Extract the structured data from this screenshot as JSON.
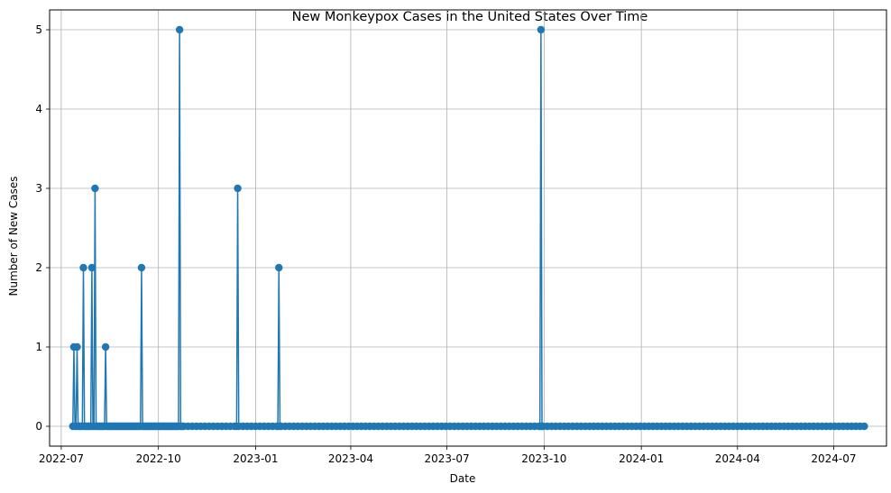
{
  "chart_data": {
    "type": "line",
    "title": "New Monkeypox Cases in the United States Over Time",
    "xlabel": "Date",
    "ylabel": "Number of New Cases",
    "grid": true,
    "marker": "circle",
    "line_color": "#1f77b4",
    "x_range": [
      "2022-06-20",
      "2024-08-20"
    ],
    "ylim": [
      -0.25,
      5.25
    ],
    "x_tick_labels": [
      "2022-07",
      "2022-10",
      "2023-01",
      "2023-04",
      "2023-07",
      "2023-10",
      "2024-01",
      "2024-04",
      "2024-07"
    ],
    "y_tick_labels": [
      "0",
      "1",
      "2",
      "3",
      "4",
      "5"
    ],
    "series_start": "2022-07-13",
    "series_end": "2024-07-31",
    "series_interval": "daily-to-weekly",
    "default_value": 0,
    "nonzero_points": [
      {
        "x": "2022-07-13",
        "y": 1
      },
      {
        "x": "2022-07-16",
        "y": 1
      },
      {
        "x": "2022-07-22",
        "y": 2
      },
      {
        "x": "2022-07-30",
        "y": 2
      },
      {
        "x": "2022-08-02",
        "y": 3
      },
      {
        "x": "2022-08-12",
        "y": 1
      },
      {
        "x": "2022-09-15",
        "y": 2
      },
      {
        "x": "2022-10-21",
        "y": 5
      },
      {
        "x": "2022-12-15",
        "y": 3
      },
      {
        "x": "2023-01-23",
        "y": 2
      },
      {
        "x": "2023-09-28",
        "y": 5
      }
    ]
  }
}
